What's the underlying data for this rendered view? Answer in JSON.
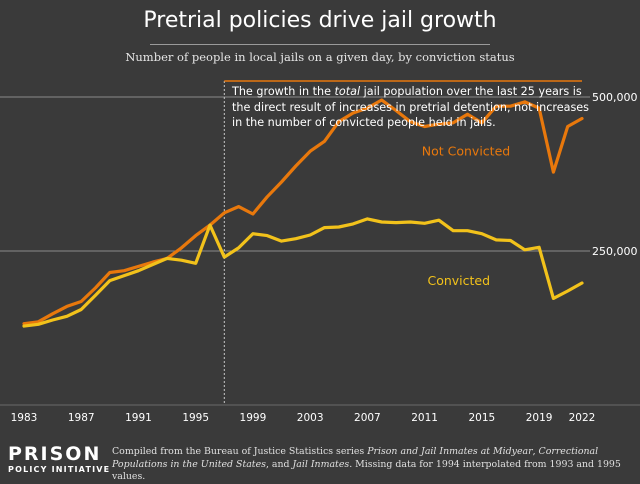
{
  "header": {
    "title": "Pretrial policies drive jail growth",
    "subtitle": "Number of people in local jails on a given day, by conviction status"
  },
  "annotation": {
    "part1": "The growth in the ",
    "emphasis": "total",
    "part2": " jail population over the last 25 years is the direct result of increases in pretrial detention, not increases in the number of convicted people held in jails."
  },
  "footer": {
    "logo_line1": "PRISON",
    "logo_line2": "POLICY INITIATIVE",
    "source_prefix": "Compiled from the Bureau of Justice Statistics series ",
    "source_title1": "Prison and Jail Inmates at Midyear",
    "source_sep1": ", ",
    "source_title2": "Correctional Populations in the United States",
    "source_sep2": ", and ",
    "source_title3": "Jail Inmates",
    "source_suffix": ". Missing data for 1994 interpolated from 1993 and 1995 values."
  },
  "colors": {
    "background": "#3a3a3a",
    "not_convicted": "#e8780c",
    "convicted": "#f2c21b",
    "grid": "#8a8a8a",
    "annotation_line": "#e8780c"
  },
  "chart_data": {
    "type": "line",
    "title": "Pretrial policies drive jail growth",
    "xlabel": "",
    "ylabel": "",
    "xlim": [
      1983,
      2022
    ],
    "ylim": [
      0,
      560000
    ],
    "x_ticks": [
      "1983",
      "1987",
      "1991",
      "1995",
      "1999",
      "2003",
      "2007",
      "2011",
      "2015",
      "2019",
      "2022"
    ],
    "y_ticks": [
      {
        "value": 250000,
        "label": "250,000"
      },
      {
        "value": 500000,
        "label": "500,000"
      }
    ],
    "grid": "horizontal",
    "annotation_span": [
      1997,
      2022
    ],
    "x": [
      1983,
      1984,
      1985,
      1986,
      1987,
      1988,
      1989,
      1990,
      1991,
      1992,
      1993,
      1994,
      1995,
      1996,
      1997,
      1998,
      1999,
      2000,
      2001,
      2002,
      2003,
      2004,
      2005,
      2006,
      2007,
      2008,
      2009,
      2010,
      2011,
      2012,
      2013,
      2014,
      2015,
      2016,
      2017,
      2018,
      2019,
      2020,
      2021,
      2022
    ],
    "series": [
      {
        "name": "Not Convicted",
        "color": "#e8780c",
        "values": [
          132000,
          135000,
          148000,
          160000,
          168000,
          190000,
          215000,
          218000,
          225000,
          232000,
          238000,
          255000,
          275000,
          292000,
          312000,
          322000,
          310000,
          338000,
          362000,
          388000,
          412000,
          428000,
          460000,
          474000,
          482000,
          495000,
          478000,
          460000,
          452000,
          456000,
          458000,
          472000,
          458000,
          485000,
          485000,
          492000,
          482000,
          378000,
          452000,
          465000
        ]
      },
      {
        "name": "Convicted",
        "color": "#f2c21b",
        "values": [
          128000,
          131000,
          138000,
          144000,
          155000,
          178000,
          202000,
          210000,
          218000,
          228000,
          238000,
          235000,
          230000,
          292000,
          240000,
          255000,
          278000,
          275000,
          266000,
          270000,
          276000,
          288000,
          289000,
          294000,
          302000,
          297000,
          296000,
          297000,
          295000,
          300000,
          283000,
          283000,
          278000,
          268000,
          267000,
          252000,
          256000,
          173000,
          185000,
          198000
        ]
      }
    ],
    "series_label_points": [
      {
        "name": "Not Convicted",
        "year": 2010.8,
        "value": 405000
      },
      {
        "name": "Convicted",
        "year": 2011.2,
        "value": 195000
      }
    ]
  }
}
